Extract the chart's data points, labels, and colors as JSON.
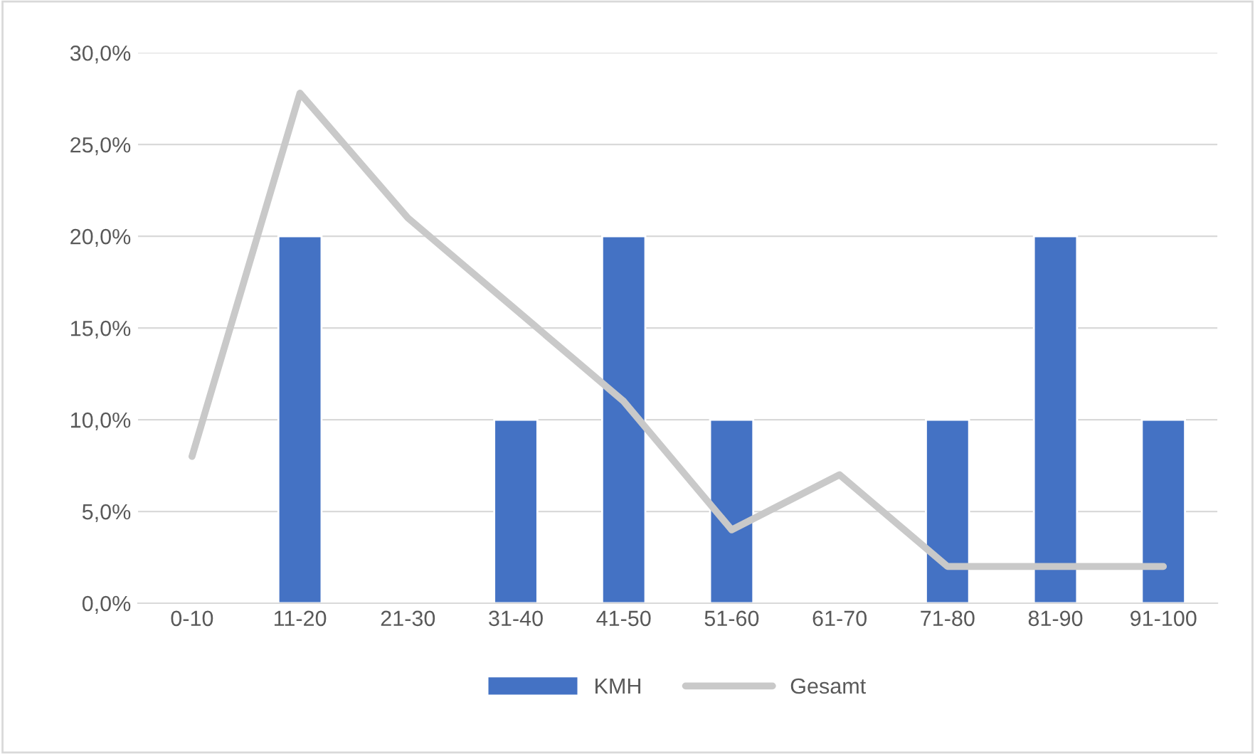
{
  "chart_data": {
    "type": "bar",
    "categories": [
      "0-10",
      "11-20",
      "21-30",
      "31-40",
      "41-50",
      "51-60",
      "61-70",
      "71-80",
      "81-90",
      "91-100"
    ],
    "series": [
      {
        "name": "KMH",
        "color": "#4472c4",
        "values": [
          null,
          20,
          null,
          10,
          20,
          10,
          null,
          10,
          20,
          10
        ]
      },
      {
        "name": "Gesamt",
        "type": "line",
        "color": "#c9c9c9",
        "values": [
          8.0,
          27.8,
          21.0,
          16.0,
          11.0,
          4.0,
          7.0,
          2.0,
          2.0,
          2.0
        ]
      }
    ],
    "ylim": [
      0,
      30
    ],
    "yticks": [
      {
        "value": 0,
        "label": "0,0%"
      },
      {
        "value": 5,
        "label": "5,0%"
      },
      {
        "value": 10,
        "label": "10,0%"
      },
      {
        "value": 15,
        "label": "15,0%"
      },
      {
        "value": 20,
        "label": "20,0%"
      },
      {
        "value": 25,
        "label": "25,0%"
      },
      {
        "value": 30,
        "label": "30,0%"
      }
    ],
    "grid": "y",
    "legend": "bottom",
    "marker": "none",
    "line_style": "solid"
  }
}
